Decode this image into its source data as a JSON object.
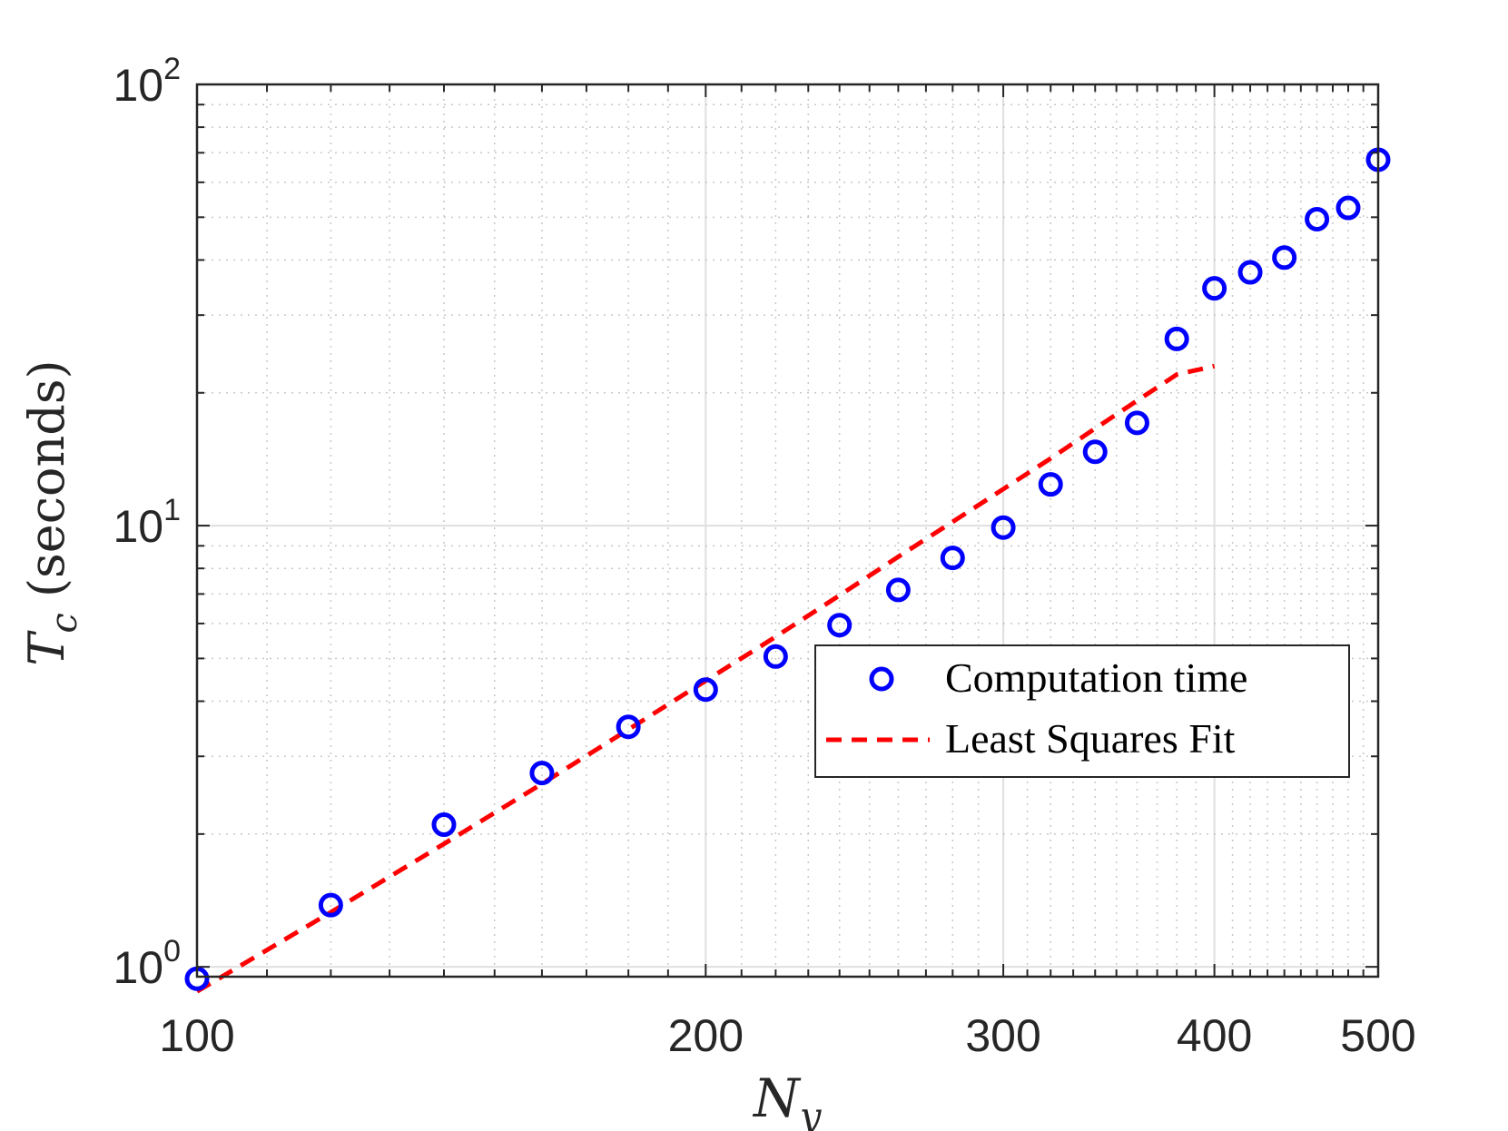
{
  "colors": {
    "points": "#0000ff",
    "fit": "#ff0000",
    "axis": "#262626",
    "grid": "#dfdfdf"
  },
  "chart_data": {
    "type": "scatter",
    "xscale": "log",
    "yscale": "log",
    "xlim": [
      100,
      500
    ],
    "ylim": [
      0.95,
      100
    ],
    "grid": true,
    "xlabel": {
      "main": "N",
      "sub": "y"
    },
    "ylabel": {
      "main": "T",
      "sub": "c",
      "rest": " (seconds)"
    },
    "xticks": [
      {
        "value": 100,
        "label": "100"
      },
      {
        "value": 200,
        "label": "200"
      },
      {
        "value": 300,
        "label": "300"
      },
      {
        "value": 400,
        "label": "400"
      },
      {
        "value": 500,
        "label": "500"
      }
    ],
    "yticks": [
      {
        "value": 1,
        "base": "10",
        "exp": "0"
      },
      {
        "value": 10,
        "base": "10",
        "exp": "1"
      },
      {
        "value": 100,
        "base": "10",
        "exp": "2"
      }
    ],
    "legend": {
      "location": "center-right"
    },
    "series": [
      {
        "name": "Computation time",
        "type": "scatter",
        "marker": "circle",
        "color": "#0000ff",
        "x": [
          100,
          120,
          140,
          160,
          180,
          200,
          220,
          240,
          260,
          280,
          300,
          320,
          340,
          360,
          380,
          400,
          420,
          440,
          460,
          480,
          500
        ],
        "y": [
          0.94,
          1.38,
          2.1,
          2.75,
          3.5,
          4.25,
          5.05,
          5.95,
          7.15,
          8.45,
          9.9,
          12.4,
          14.7,
          17.1,
          26.5,
          34.5,
          37.5,
          40.5,
          49.5,
          52.5,
          67.5
        ]
      },
      {
        "name": "Least Squares Fit",
        "type": "line",
        "style": "dashed",
        "color": "#ff0000",
        "x": [
          100,
          120,
          140,
          160,
          180,
          200,
          220,
          240,
          260,
          280,
          300,
          320,
          340,
          360,
          380,
          400
        ],
        "y": [
          0.88,
          1.33,
          1.9,
          2.6,
          3.45,
          4.45,
          5.6,
          6.95,
          8.5,
          10.2,
          12.1,
          14.2,
          16.6,
          19.2,
          22.0,
          23.0
        ]
      }
    ]
  }
}
